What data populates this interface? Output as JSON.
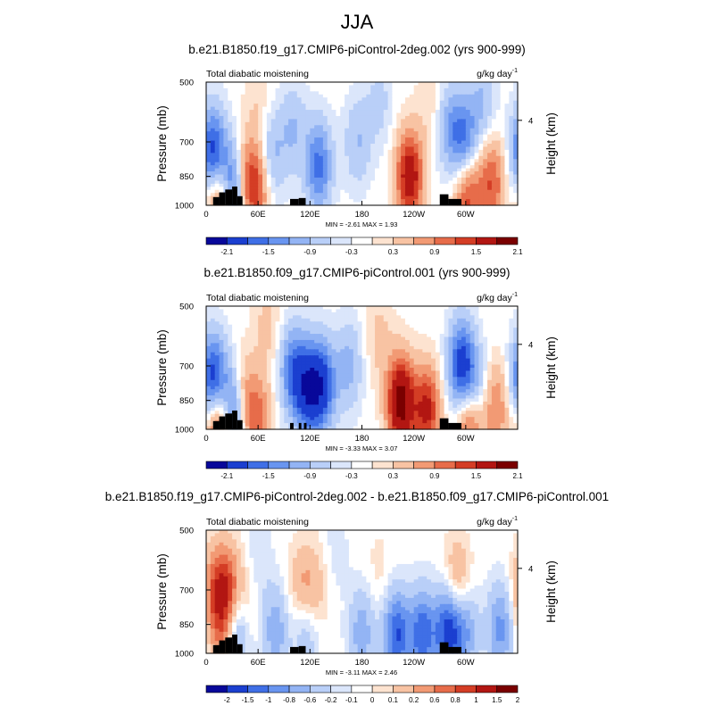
{
  "main_title": "JJA",
  "chart_data": [
    {
      "type": "heatmap",
      "title": "b.e21.B1850.f19_g17.CMIP6-piControl-2deg.002 (yrs 900-999)",
      "subtitle_left": "Total diabatic moistening",
      "units": "g/kg day",
      "units_sup": "-1",
      "ylabel": "Pressure (mb)",
      "ylabel_right": "Height (km)",
      "xticks": [
        "0",
        "60E",
        "120E",
        "180",
        "120W",
        "60W"
      ],
      "yticks": [
        "500",
        "700",
        "850",
        "1000"
      ],
      "yticks_right": [
        "4"
      ],
      "xlim": [
        0,
        360
      ],
      "ylim": [
        1000,
        500
      ],
      "minmax": "MIN =  -2.61   MAX =   1.93",
      "colorbar_labels": [
        "-2.1",
        "-1.5",
        "-0.9",
        "-0.3",
        "0.3",
        "0.9",
        "1.5",
        "2.1"
      ],
      "blobs": [
        {
          "lon": 8,
          "p": 750,
          "v": -1.8
        },
        {
          "lon": 33,
          "p": 910,
          "v": -2.2
        },
        {
          "lon": 42,
          "p": 880,
          "v": 1.4
        },
        {
          "lon": 58,
          "p": 900,
          "v": 1.2
        },
        {
          "lon": 15,
          "p": 980,
          "v": 1.5
        },
        {
          "lon": 75,
          "p": 760,
          "v": -0.7
        },
        {
          "lon": 100,
          "p": 650,
          "v": -0.6
        },
        {
          "lon": 130,
          "p": 800,
          "v": -1.3
        },
        {
          "lon": 175,
          "p": 700,
          "v": -0.6
        },
        {
          "lon": 200,
          "p": 560,
          "v": -0.4
        },
        {
          "lon": 235,
          "p": 850,
          "v": 1.9
        },
        {
          "lon": 280,
          "p": 640,
          "v": -0.7
        },
        {
          "lon": 298,
          "p": 700,
          "v": -1.3
        },
        {
          "lon": 302,
          "p": 950,
          "v": 1.4
        },
        {
          "lon": 330,
          "p": 880,
          "v": 1.2
        },
        {
          "lon": 320,
          "p": 560,
          "v": -0.6
        },
        {
          "lon": 60,
          "p": 560,
          "v": 0.3
        },
        {
          "lon": 260,
          "p": 560,
          "v": 0.3
        }
      ],
      "terrain": [
        [
          8,
          15,
          955
        ],
        [
          15,
          22,
          930
        ],
        [
          22,
          30,
          915
        ],
        [
          30,
          36,
          900
        ],
        [
          36,
          42,
          950
        ],
        [
          97,
          107,
          965
        ],
        [
          107,
          115,
          960
        ],
        [
          270,
          280,
          940
        ],
        [
          280,
          295,
          965
        ]
      ]
    },
    {
      "type": "heatmap",
      "title": "b.e21.B1850.f09_g17.CMIP6-piControl.001 (yrs 900-999)",
      "subtitle_left": "Total diabatic moistening",
      "units": "g/kg day",
      "units_sup": "-1",
      "ylabel": "Pressure (mb)",
      "ylabel_right": "Height (km)",
      "xticks": [
        "0",
        "60E",
        "120E",
        "180",
        "120W",
        "60W"
      ],
      "yticks": [
        "500",
        "700",
        "850",
        "1000"
      ],
      "yticks_right": [
        "4"
      ],
      "xlim": [
        0,
        360
      ],
      "ylim": [
        1000,
        500
      ],
      "minmax": "MIN =  -3.33   MAX =   3.07",
      "colorbar_labels": [
        "-2.1",
        "-1.5",
        "-0.9",
        "-0.3",
        "0.3",
        "0.9",
        "1.5",
        "2.1"
      ],
      "blobs": [
        {
          "lon": 8,
          "p": 760,
          "v": -1.9
        },
        {
          "lon": 33,
          "p": 900,
          "v": -2.4
        },
        {
          "lon": 40,
          "p": 860,
          "v": 1.6
        },
        {
          "lon": 15,
          "p": 985,
          "v": 1.8
        },
        {
          "lon": 60,
          "p": 960,
          "v": 1.0
        },
        {
          "lon": 100,
          "p": 720,
          "v": -1.2
        },
        {
          "lon": 118,
          "p": 800,
          "v": -1.7
        },
        {
          "lon": 135,
          "p": 780,
          "v": -1.5
        },
        {
          "lon": 165,
          "p": 700,
          "v": -0.7
        },
        {
          "lon": 225,
          "p": 860,
          "v": 2.4
        },
        {
          "lon": 255,
          "p": 900,
          "v": 1.6
        },
        {
          "lon": 295,
          "p": 700,
          "v": -1.7
        },
        {
          "lon": 310,
          "p": 820,
          "v": -1.0
        },
        {
          "lon": 305,
          "p": 960,
          "v": 1.6
        },
        {
          "lon": 335,
          "p": 880,
          "v": 0.9
        },
        {
          "lon": 70,
          "p": 560,
          "v": 0.4
        },
        {
          "lon": 200,
          "p": 600,
          "v": 0.4
        }
      ],
      "terrain": [
        [
          8,
          15,
          955
        ],
        [
          15,
          22,
          930
        ],
        [
          22,
          30,
          915
        ],
        [
          30,
          36,
          900
        ],
        [
          36,
          42,
          950
        ],
        [
          97,
          101,
          965
        ],
        [
          107,
          110,
          965
        ],
        [
          113,
          116,
          965
        ],
        [
          270,
          280,
          940
        ],
        [
          280,
          295,
          965
        ]
      ]
    },
    {
      "type": "heatmap",
      "title": "b.e21.B1850.f19_g17.CMIP6-piControl-2deg.002 - b.e21.B1850.f09_g17.CMIP6-piControl.001",
      "subtitle_left": "Total diabatic moistening",
      "units": "g/kg day",
      "units_sup": "-1",
      "ylabel": "Pressure (mb)",
      "ylabel_right": "Height (km)",
      "xticks": [
        "0",
        "60E",
        "120E",
        "180",
        "120W",
        "60W"
      ],
      "yticks": [
        "500",
        "700",
        "850",
        "1000"
      ],
      "yticks_right": [
        "4"
      ],
      "xlim": [
        0,
        360
      ],
      "ylim": [
        1000,
        500
      ],
      "minmax": "MIN =  -3.11   MAX =   2.46",
      "colorbar_labels": [
        "-2",
        "-1.5",
        "-1",
        "-0.8",
        "-0.6",
        "-0.2",
        "-0.1",
        "0",
        "0.1",
        "0.2",
        "0.6",
        "0.8",
        "1",
        "1.5",
        "2"
      ],
      "blobs": [
        {
          "lon": 10,
          "p": 700,
          "v": 0.9
        },
        {
          "lon": 25,
          "p": 700,
          "v": 1.2
        },
        {
          "lon": 35,
          "p": 870,
          "v": -1.2
        },
        {
          "lon": 20,
          "p": 900,
          "v": 0.8
        },
        {
          "lon": 45,
          "p": 760,
          "v": 0.5
        },
        {
          "lon": 80,
          "p": 880,
          "v": -0.8
        },
        {
          "lon": 110,
          "p": 700,
          "v": 0.6
        },
        {
          "lon": 125,
          "p": 700,
          "v": 0.5
        },
        {
          "lon": 115,
          "p": 880,
          "v": -0.7
        },
        {
          "lon": 180,
          "p": 890,
          "v": -0.8
        },
        {
          "lon": 220,
          "p": 900,
          "v": -1.5
        },
        {
          "lon": 250,
          "p": 900,
          "v": -1.4
        },
        {
          "lon": 280,
          "p": 880,
          "v": -1.7
        },
        {
          "lon": 290,
          "p": 680,
          "v": 0.8
        },
        {
          "lon": 300,
          "p": 920,
          "v": -1.8
        },
        {
          "lon": 300,
          "p": 970,
          "v": 1.0
        },
        {
          "lon": 340,
          "p": 870,
          "v": -1.0
        },
        {
          "lon": 200,
          "p": 640,
          "v": 0.2
        },
        {
          "lon": 150,
          "p": 560,
          "v": -0.2
        },
        {
          "lon": 60,
          "p": 600,
          "v": -0.3
        }
      ],
      "terrain": [
        [
          8,
          15,
          955
        ],
        [
          15,
          22,
          930
        ],
        [
          22,
          30,
          915
        ],
        [
          30,
          36,
          900
        ],
        [
          36,
          42,
          950
        ],
        [
          97,
          107,
          965
        ],
        [
          107,
          115,
          960
        ],
        [
          270,
          280,
          940
        ],
        [
          280,
          295,
          965
        ]
      ]
    }
  ]
}
